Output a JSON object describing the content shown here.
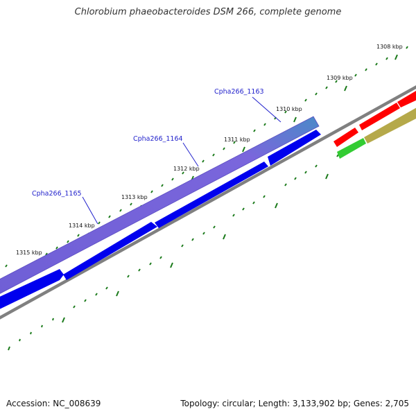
{
  "title": "Chlorobium phaeobacteroides DSM 266, complete genome",
  "footer": {
    "accession": "Accession: NC_008639",
    "summary": "Topology: circular; Length: 3,133,902 bp; Genes: 2,705"
  },
  "colors": {
    "backbone": "#7a7a7a",
    "forward_cds": "#0000ee",
    "reverse_cds": "#ff0000",
    "gc_skew_pos": "#b5a94a",
    "gc_skew_neg": "#33cc33",
    "highlight": "#6f5fd6",
    "tick": "#1a7a1a",
    "gene_label": "#2222cc"
  },
  "kbp_labels": [
    "1308 kbp",
    "1309 kbp",
    "1310 kbp",
    "1311 kbp",
    "1312 kbp",
    "1313 kbp",
    "1314 kbp",
    "1315 kbp"
  ],
  "gene_labels": [
    "Cpha266_1163",
    "Cpha266_1164",
    "Cpha266_1165"
  ]
}
